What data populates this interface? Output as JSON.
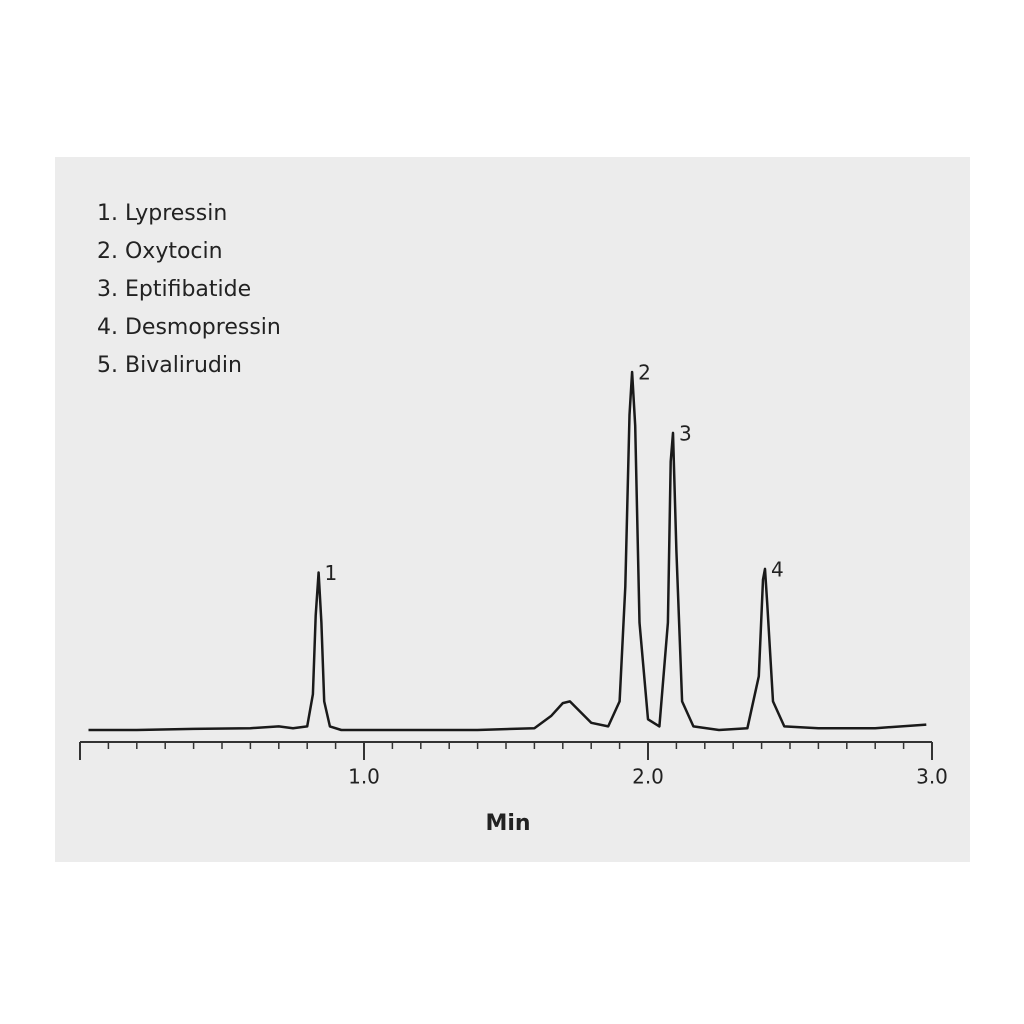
{
  "chart_data": {
    "type": "line",
    "legend_items": [
      "1. Lypressin",
      "2. Oxytocin",
      "3. Eptifibatide",
      "4. Desmopressin",
      "5. Bivalirudin"
    ],
    "xlabel": "Min",
    "xlim": [
      0,
      3.0
    ],
    "xticks": [
      {
        "value": 1,
        "label": "1.0"
      },
      {
        "value": 2,
        "label": "2.0"
      },
      {
        "value": 3,
        "label": "3.0"
      }
    ],
    "xminor_step": 0.1,
    "color": "#1a1a1a",
    "x": [
      0.03,
      0.2,
      0.4,
      0.6,
      0.7,
      0.75,
      0.8,
      0.82,
      0.83,
      0.84,
      0.85,
      0.86,
      0.88,
      0.92,
      1.0,
      1.2,
      1.4,
      1.6,
      1.66,
      1.7,
      1.725,
      1.75,
      1.8,
      1.86,
      1.9,
      1.92,
      1.935,
      1.944,
      1.955,
      1.97,
      2.0,
      2.04,
      2.07,
      2.08,
      2.088,
      2.1,
      2.12,
      2.16,
      2.25,
      2.35,
      2.39,
      2.405,
      2.412,
      2.42,
      2.44,
      2.48,
      2.6,
      2.8,
      2.98
    ],
    "values": [
      0,
      0,
      0.3,
      0.5,
      1,
      0.5,
      1,
      10,
      32,
      44,
      30,
      8,
      1,
      0,
      0,
      0,
      0,
      0.5,
      4,
      7.5,
      8,
      6,
      2,
      1,
      8,
      40,
      88,
      100,
      85,
      30,
      3,
      1,
      30,
      75,
      83,
      50,
      8,
      1,
      0,
      0.5,
      15,
      42,
      45,
      35,
      8,
      1,
      0.5,
      0.5,
      1.5
    ],
    "annotations": [
      {
        "text": "1",
        "x": 0.84
      },
      {
        "text": "2",
        "x": 1.944
      },
      {
        "text": "3",
        "x": 2.088
      },
      {
        "text": "4",
        "x": 2.412
      }
    ]
  }
}
